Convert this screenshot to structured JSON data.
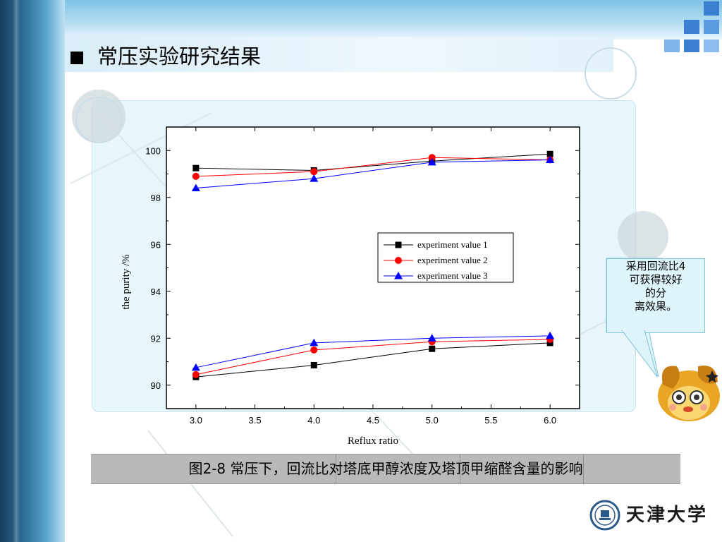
{
  "slide": {
    "title": "常压实验研究结果"
  },
  "callout": {
    "text": "采用回流比4\n可获得较好\n的分\n离效果。"
  },
  "caption": {
    "text": "图2-8 常压下，回流比对塔底甲醇浓度及塔顶甲缩醛含量的影响"
  },
  "logo": {
    "text": "天津大学",
    "icon": "university-seal-icon"
  },
  "chart_data": {
    "type": "line",
    "title": "",
    "xlabel": "Reflux ratio",
    "ylabel": "the purity /%",
    "xlim": [
      2.75,
      6.25
    ],
    "ylim": [
      89.0,
      101.0
    ],
    "xticks": [
      "3.0",
      "3.5",
      "4.0",
      "4.5",
      "5.0",
      "5.5",
      "6.0"
    ],
    "xtick_values": [
      3.0,
      3.5,
      4.0,
      4.5,
      5.0,
      5.5,
      6.0
    ],
    "yticks": [
      "90",
      "92",
      "94",
      "96",
      "98",
      "100"
    ],
    "ytick_values": [
      90,
      92,
      94,
      96,
      98,
      100
    ],
    "grid": false,
    "legend_position": "right-center",
    "x": [
      3.0,
      4.0,
      5.0,
      6.0
    ],
    "series": [
      {
        "name": "experiment value  1",
        "color": "#000000",
        "marker": "square",
        "values": [
          99.25,
          99.15,
          99.55,
          99.85
        ]
      },
      {
        "name": "experiment value 2",
        "color": "#ff0000",
        "marker": "circle",
        "values": [
          98.9,
          99.1,
          99.7,
          99.6
        ]
      },
      {
        "name": "experiment value 3",
        "color": "#0000ff",
        "marker": "triangle",
        "values": [
          98.4,
          98.8,
          99.5,
          99.6
        ]
      },
      {
        "color": "#000000",
        "marker": "square",
        "values": [
          90.35,
          90.85,
          91.55,
          91.8
        ]
      },
      {
        "color": "#ff0000",
        "marker": "circle",
        "values": [
          90.45,
          91.5,
          91.85,
          91.95
        ]
      },
      {
        "color": "#0000ff",
        "marker": "triangle",
        "values": [
          90.75,
          91.8,
          92.0,
          92.1
        ]
      }
    ]
  }
}
